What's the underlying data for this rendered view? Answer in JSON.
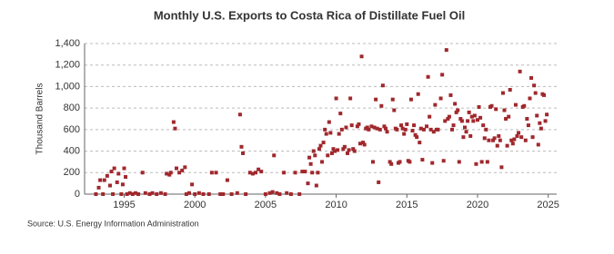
{
  "chart_data": {
    "type": "scatter",
    "title": "Monthly U.S. Exports to Costa Rica of Distillate Fuel Oil",
    "y_label": "Thousand Barrels",
    "source": "Source: U.S. Energy Information Administration",
    "color": "#a0282d",
    "grid": true,
    "xlim": [
      1992.2,
      2025.6
    ],
    "ylim": [
      0,
      1400
    ],
    "xticks": [
      1995,
      2000,
      2005,
      2010,
      2015,
      2020,
      2025
    ],
    "yticks": [
      0,
      200,
      400,
      600,
      800,
      {
        "value": 1000,
        "label": "1,000"
      },
      {
        "value": 1200,
        "label": "1,200"
      },
      {
        "value": 1400,
        "label": "1,400"
      }
    ],
    "x": [
      1993.0,
      1993.2,
      1993.3,
      1993.5,
      1993.6,
      1993.8,
      1994.0,
      1994.1,
      1994.2,
      1994.3,
      1994.5,
      1994.6,
      1994.8,
      1994.9,
      1995.0,
      1995.1,
      1995.2,
      1995.4,
      1995.6,
      1995.8,
      1996.0,
      1996.3,
      1996.5,
      1996.8,
      1997.0,
      1997.3,
      1997.6,
      1997.9,
      1998.0,
      1998.2,
      1998.3,
      1998.5,
      1998.6,
      1998.7,
      1998.9,
      1999.1,
      1999.3,
      1999.4,
      1999.6,
      1999.8,
      2000.0,
      2000.3,
      2000.6,
      2001.0,
      2001.2,
      2001.5,
      2001.8,
      2002.0,
      2002.3,
      2002.6,
      2003.0,
      2003.2,
      2003.3,
      2003.4,
      2003.6,
      2003.9,
      2004.1,
      2004.3,
      2004.5,
      2004.7,
      2005.0,
      2005.3,
      2005.5,
      2005.6,
      2005.8,
      2006.0,
      2006.3,
      2006.5,
      2006.8,
      2007.1,
      2007.4,
      2007.6,
      2007.8,
      2008.0,
      2008.1,
      2008.2,
      2008.3,
      2008.4,
      2008.5,
      2008.6,
      2008.7,
      2008.8,
      2008.9,
      2009.0,
      2009.1,
      2009.2,
      2009.3,
      2009.4,
      2009.5,
      2009.6,
      2009.7,
      2009.8,
      2009.9,
      2010.0,
      2010.1,
      2010.2,
      2010.3,
      2010.4,
      2010.5,
      2010.6,
      2010.7,
      2010.8,
      2010.9,
      2011.0,
      2011.1,
      2011.2,
      2011.3,
      2011.5,
      2011.6,
      2011.7,
      2011.8,
      2011.9,
      2012.0,
      2012.1,
      2012.2,
      2012.3,
      2012.5,
      2012.6,
      2012.7,
      2012.8,
      2012.9,
      2013.0,
      2013.1,
      2013.2,
      2013.3,
      2013.4,
      2013.5,
      2013.6,
      2013.8,
      2013.9,
      2014.0,
      2014.1,
      2014.2,
      2014.3,
      2014.4,
      2014.5,
      2014.6,
      2014.7,
      2014.8,
      2014.9,
      2015.0,
      2015.1,
      2015.2,
      2015.3,
      2015.4,
      2015.5,
      2015.6,
      2015.7,
      2015.8,
      2015.9,
      2016.0,
      2016.1,
      2016.2,
      2016.4,
      2016.5,
      2016.6,
      2016.7,
      2016.8,
      2016.9,
      2017.0,
      2017.1,
      2017.2,
      2017.4,
      2017.5,
      2017.6,
      2017.7,
      2017.8,
      2017.9,
      2018.0,
      2018.1,
      2018.2,
      2018.3,
      2018.4,
      2018.5,
      2018.6,
      2018.7,
      2018.8,
      2018.9,
      2019.0,
      2019.1,
      2019.2,
      2019.3,
      2019.4,
      2019.5,
      2019.6,
      2019.7,
      2019.8,
      2019.9,
      2020.0,
      2020.1,
      2020.2,
      2020.3,
      2020.4,
      2020.5,
      2020.6,
      2020.7,
      2020.8,
      2020.9,
      2021.0,
      2021.1,
      2021.2,
      2021.3,
      2021.4,
      2021.5,
      2021.6,
      2021.7,
      2021.8,
      2021.9,
      2022.0,
      2022.1,
      2022.2,
      2022.3,
      2022.4,
      2022.5,
      2022.6,
      2022.7,
      2022.8,
      2022.9,
      2023.0,
      2023.1,
      2023.2,
      2023.3,
      2023.4,
      2023.5,
      2023.6,
      2023.7,
      2023.8,
      2023.9,
      2024.0,
      2024.1,
      2024.2,
      2024.3,
      2024.4,
      2024.5,
      2024.6,
      2024.7,
      2024.8,
      2024.9
    ],
    "values": [
      0,
      60,
      130,
      0,
      130,
      170,
      80,
      210,
      0,
      240,
      110,
      190,
      0,
      90,
      240,
      160,
      0,
      10,
      0,
      10,
      0,
      200,
      10,
      0,
      10,
      0,
      10,
      0,
      190,
      180,
      200,
      670,
      610,
      240,
      200,
      220,
      250,
      0,
      10,
      90,
      0,
      10,
      0,
      0,
      200,
      200,
      0,
      0,
      130,
      0,
      10,
      740,
      440,
      380,
      0,
      200,
      190,
      200,
      230,
      210,
      0,
      10,
      20,
      360,
      10,
      0,
      200,
      10,
      0,
      200,
      0,
      210,
      210,
      100,
      340,
      280,
      200,
      400,
      360,
      80,
      200,
      420,
      450,
      300,
      480,
      600,
      560,
      360,
      670,
      570,
      380,
      420,
      400,
      890,
      410,
      560,
      750,
      600,
      420,
      440,
      620,
      380,
      410,
      890,
      640,
      420,
      400,
      630,
      650,
      470,
      1280,
      480,
      460,
      610,
      620,
      600,
      630,
      300,
      620,
      880,
      610,
      110,
      600,
      820,
      1010,
      630,
      610,
      580,
      300,
      280,
      880,
      780,
      610,
      600,
      290,
      300,
      640,
      610,
      560,
      600,
      650,
      310,
      300,
      880,
      590,
      640,
      550,
      530,
      930,
      480,
      610,
      320,
      600,
      630,
      1090,
      720,
      600,
      290,
      580,
      830,
      600,
      600,
      890,
      1110,
      310,
      680,
      1340,
      700,
      720,
      920,
      600,
      640,
      840,
      760,
      780,
      300,
      700,
      680,
      530,
      620,
      580,
      680,
      760,
      540,
      720,
      680,
      730,
      280,
      690,
      810,
      710,
      300,
      640,
      520,
      600,
      300,
      500,
      810,
      820,
      500,
      520,
      790,
      450,
      540,
      500,
      250,
      940,
      780,
      700,
      450,
      720,
      970,
      500,
      470,
      510,
      830,
      540,
      570,
      1140,
      530,
      810,
      820,
      500,
      700,
      640,
      890,
      1080,
      530,
      1010,
      940,
      730,
      460,
      660,
      610,
      930,
      920,
      680,
      740
    ]
  }
}
